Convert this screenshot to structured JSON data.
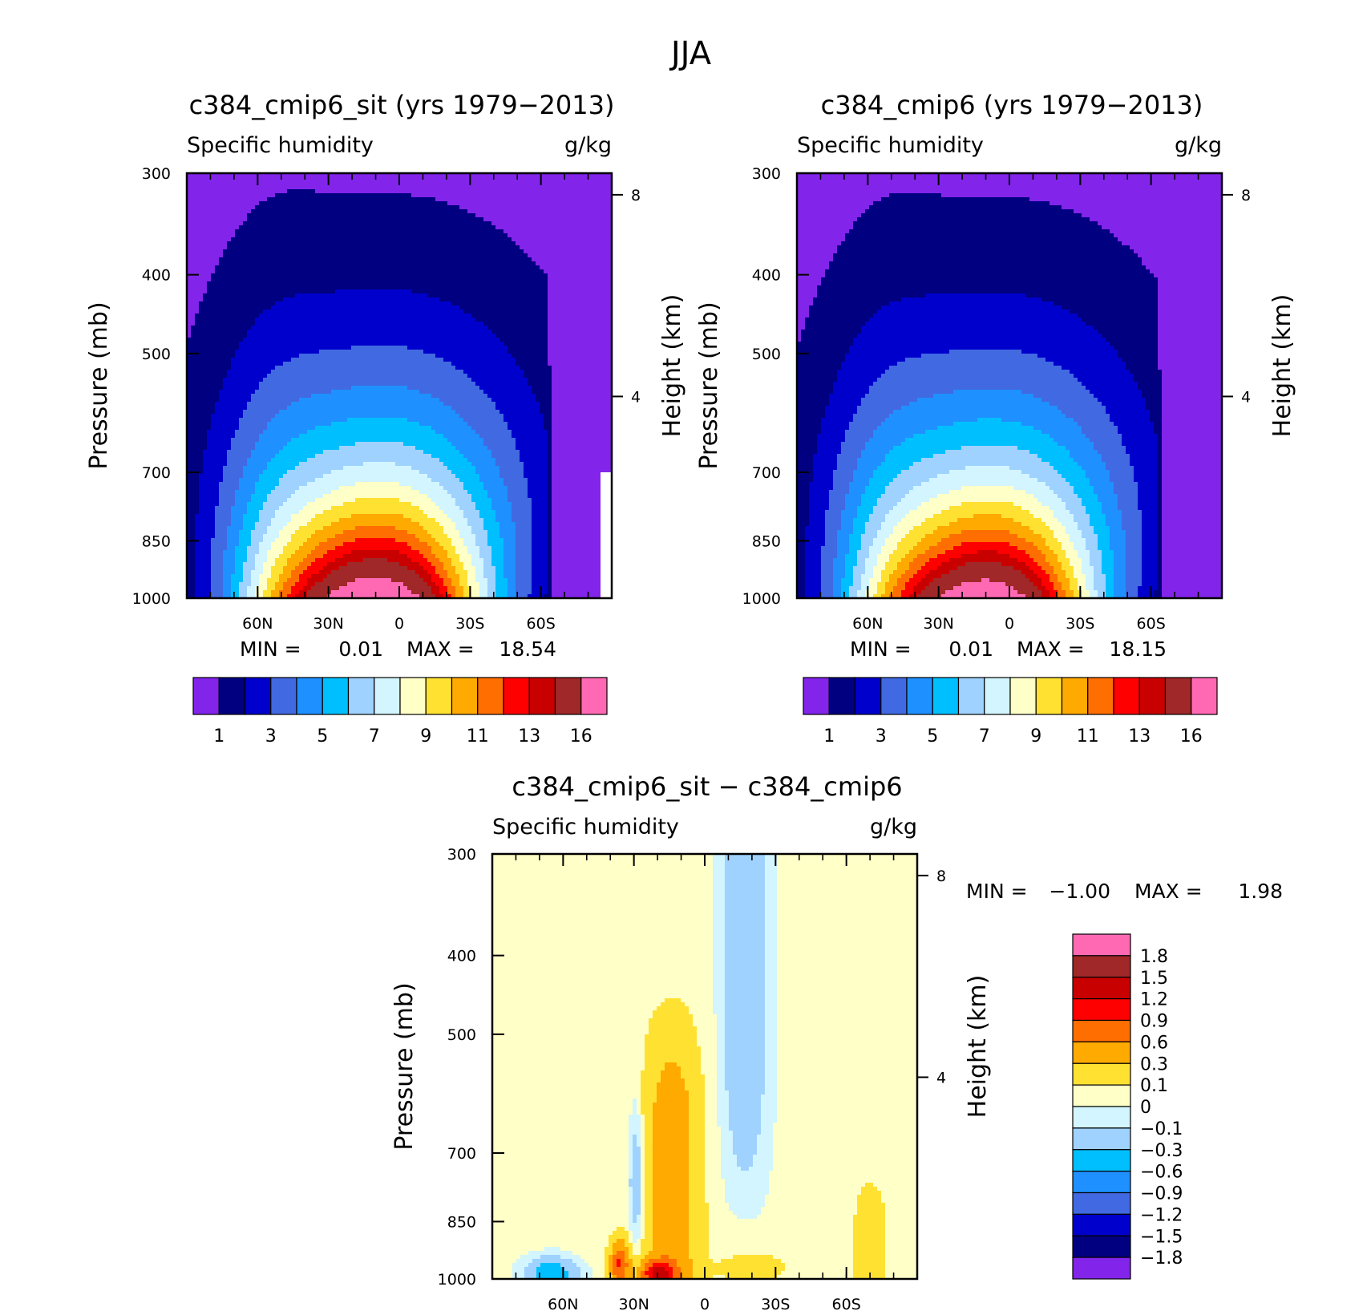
{
  "figure_title": "JJA",
  "chart_data": [
    {
      "type": "contour",
      "panel": "top-left",
      "title": "c384_cmip6_sit (yrs 1979−2013)",
      "variable": "Specific humidity",
      "units": "g/kg",
      "xlabel": "",
      "ylabel": "Pressure (mb)",
      "y2label": "Height (km)",
      "x_ticks": [
        "60N",
        "30N",
        "0",
        "30S",
        "60S"
      ],
      "y_ticks": [
        "300",
        "400",
        "500",
        "700",
        "850",
        "1000"
      ],
      "height_ticks": [
        "8",
        "4"
      ],
      "stats": {
        "min_label": "MIN =",
        "min": "0.01",
        "max_label": "MAX =",
        "max": "18.54"
      },
      "colorbar": {
        "orientation": "horizontal",
        "colors": [
          "#8224EA",
          "#000080",
          "#0000CD",
          "#4169E1",
          "#1E90FF",
          "#00BFFF",
          "#A0D2FF",
          "#D2F5FF",
          "#FFFFC8",
          "#FFE132",
          "#FFAA00",
          "#FF6E00",
          "#FF0000",
          "#C80000",
          "#A02828",
          "#FF69B4"
        ],
        "labels": [
          "1",
          "3",
          "5",
          "7",
          "9",
          "11",
          "13",
          "16"
        ]
      },
      "contour_levels": [
        1,
        2,
        3,
        4,
        5,
        6,
        7,
        8,
        9,
        10,
        11,
        12,
        13,
        14,
        16
      ],
      "peak_latitude": 10,
      "peak_value": 18.54
    },
    {
      "type": "contour",
      "panel": "top-right",
      "title": "c384_cmip6 (yrs 1979−2013)",
      "variable": "Specific humidity",
      "units": "g/kg",
      "xlabel": "",
      "ylabel": "Pressure (mb)",
      "y2label": "Height (km)",
      "x_ticks": [
        "60N",
        "30N",
        "0",
        "30S",
        "60S"
      ],
      "y_ticks": [
        "300",
        "400",
        "500",
        "700",
        "850",
        "1000"
      ],
      "height_ticks": [
        "8",
        "4"
      ],
      "stats": {
        "min_label": "MIN =",
        "min": "0.01",
        "max_label": "MAX =",
        "max": "18.15"
      },
      "colorbar": {
        "orientation": "horizontal",
        "colors": [
          "#8224EA",
          "#000080",
          "#0000CD",
          "#4169E1",
          "#1E90FF",
          "#00BFFF",
          "#A0D2FF",
          "#D2F5FF",
          "#FFFFC8",
          "#FFE132",
          "#FFAA00",
          "#FF6E00",
          "#FF0000",
          "#C80000",
          "#A02828",
          "#FF69B4"
        ],
        "labels": [
          "1",
          "3",
          "5",
          "7",
          "9",
          "11",
          "13",
          "16"
        ]
      },
      "contour_levels": [
        1,
        2,
        3,
        4,
        5,
        6,
        7,
        8,
        9,
        10,
        11,
        12,
        13,
        14,
        16
      ],
      "peak_latitude": 10,
      "peak_value": 18.15
    },
    {
      "type": "contour",
      "panel": "bottom",
      "title": "c384_cmip6_sit − c384_cmip6",
      "variable": "Specific humidity",
      "units": "g/kg",
      "xlabel": "",
      "ylabel": "Pressure (mb)",
      "y2label": "Height (km)",
      "x_ticks": [
        "60N",
        "30N",
        "0",
        "30S",
        "60S"
      ],
      "y_ticks": [
        "300",
        "400",
        "500",
        "700",
        "850",
        "1000"
      ],
      "height_ticks": [
        "8",
        "4"
      ],
      "stats": {
        "min_label": "MIN =",
        "min": "−1.00",
        "max_label": "MAX =",
        "max": "1.98"
      },
      "colorbar": {
        "orientation": "vertical",
        "colors_top_to_bottom": [
          "#FF69B4",
          "#A02828",
          "#C80000",
          "#FF0000",
          "#FF6E00",
          "#FFAA00",
          "#FFE132",
          "#FFFFC8",
          "#D2F5FF",
          "#A0D2FF",
          "#00BFFF",
          "#1E90FF",
          "#4169E1",
          "#0000CD",
          "#000080",
          "#8224EA"
        ],
        "labels_top_to_bottom": [
          "1.8",
          "1.5",
          "1.2",
          "0.9",
          "0.6",
          "0.3",
          "0.1",
          "0",
          "−0.1",
          "−0.3",
          "−0.6",
          "−0.9",
          "−1.2",
          "−1.5",
          "−1.8"
        ]
      }
    }
  ]
}
